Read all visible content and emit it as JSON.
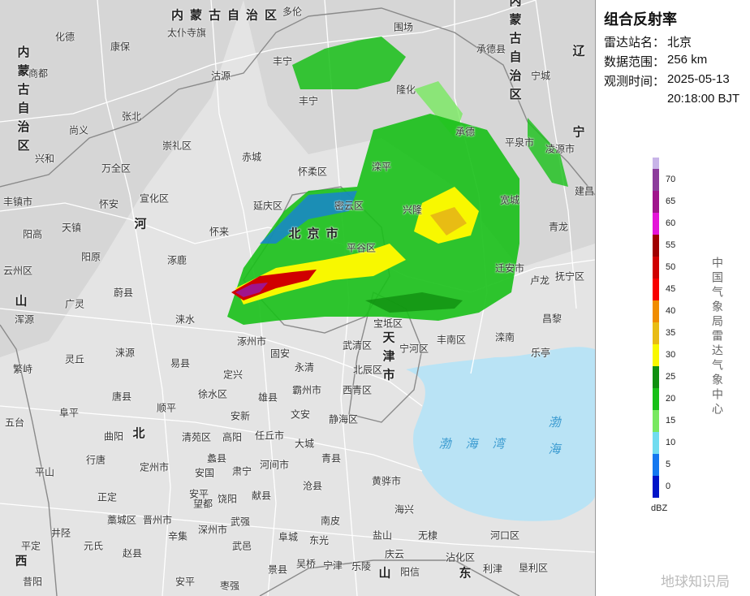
{
  "panel": {
    "title": "组合反射率",
    "fields": [
      {
        "label": "雷达站名：",
        "value": "北京"
      },
      {
        "label": "数据范围：",
        "value": "256 km"
      },
      {
        "label": "观测时间：",
        "value": "2025-05-13"
      }
    ],
    "time": "20:18:00 BJT"
  },
  "legend": {
    "values": [
      70,
      65,
      60,
      55,
      50,
      45,
      40,
      35,
      30,
      25,
      20,
      15,
      10,
      5,
      0
    ],
    "colors": [
      "#8c3c9c",
      "#a0148c",
      "#e414d8",
      "#a00000",
      "#d00000",
      "#f80000",
      "#f08c00",
      "#e8bc14",
      "#f8f800",
      "#109010",
      "#18c018",
      "#78e860",
      "#70dcf0",
      "#1478f0",
      "#0014c8"
    ],
    "unit": "dBZ",
    "source": "中国气象局雷达气象中心"
  },
  "watermark": "地球知识局",
  "regions": [
    "内蒙古自治区",
    "内蒙古自治区",
    "内蒙古自治区",
    "河",
    "北",
    "北京市",
    "天津市",
    "山",
    "西",
    "辽",
    "宁",
    "渤海湾",
    "渤海",
    "山",
    "东"
  ],
  "places": [
    "多伦",
    "太仆寺旗",
    "康保",
    "化德",
    "商都",
    "沽源",
    "丰宁",
    "隆化",
    "围场",
    "张北",
    "尚义",
    "崇礼区",
    "赤城",
    "怀来",
    "延庆区",
    "怀柔区",
    "密云区",
    "平谷区",
    "兴隆",
    "承德",
    "滦平",
    "宽城",
    "青龙",
    "迁安市",
    "卢龙",
    "抚宁区",
    "昌黎",
    "滦南",
    "乐亭",
    "丰南区",
    "宁河区",
    "宝坻区",
    "武清区",
    "北辰区",
    "西青区",
    "静海区",
    "涿州市",
    "固安",
    "永清",
    "霸州市",
    "雄县",
    "安新",
    "文安",
    "任丘市",
    "大城",
    "河间市",
    "肃宁",
    "献县",
    "沧县",
    "青县",
    "黄骅市",
    "海兴",
    "南皮",
    "东光",
    "盐山",
    "无棣",
    "阜城",
    "景县",
    "吴桥",
    "宁津",
    "乐陵",
    "阳信",
    "庆云",
    "沾化区",
    "河口区",
    "利津",
    "垦利区",
    "定兴",
    "易县",
    "徐水区",
    "唐县",
    "顺平",
    "清苑区",
    "高阳",
    "蠡县",
    "定州市",
    "安国",
    "饶阳",
    "深州市",
    "武强",
    "武邑",
    "枣强",
    "辛集",
    "晋州市",
    "安平",
    "涞水",
    "涞源",
    "涿鹿",
    "蔚县",
    "阳原",
    "宣化区",
    "万全区",
    "怀安",
    "天镇",
    "阳高",
    "广灵",
    "灵丘",
    "浑源",
    "繁峙",
    "五台",
    "阜平",
    "曲阳",
    "行唐",
    "平山",
    "元氏",
    "赵县",
    "井陉",
    "平定",
    "昔阳",
    "正定",
    "藁城区",
    "兴和",
    "丰镇市",
    "云州区",
    "平泉市",
    "凌源市",
    "建昌",
    "宁城",
    "承德县",
    "丰宁",
    "望都",
    "安平"
  ]
}
